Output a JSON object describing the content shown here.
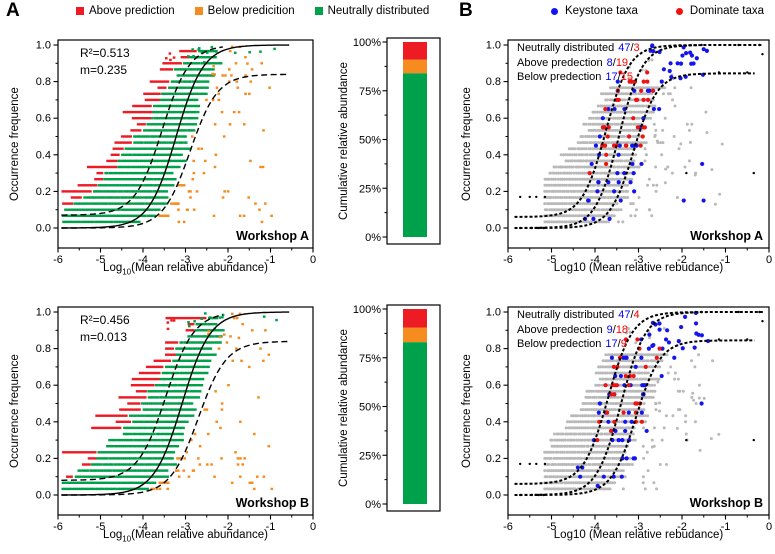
{
  "figure": {
    "panel_labels": {
      "a": "A",
      "b": "B"
    },
    "count_sep": "/",
    "background": "#ffffff",
    "legend_a": [
      {
        "label": "Above prediction",
        "color": "#ed1c24"
      },
      {
        "label": "Below predicition",
        "color": "#f68b1f"
      },
      {
        "label": "Neutrally distributed",
        "color": "#00a14b"
      }
    ],
    "legend_b": [
      {
        "label": "Keystone taxa",
        "color": "#1414ee"
      },
      {
        "label": "Dominate taxa",
        "color": "#f01111"
      }
    ],
    "annotation_number_colors": {
      "keystone": "#0000ff",
      "dominate": "#ff0000"
    },
    "point_colors": {
      "background_taxa": "#b9b9b9",
      "black": "#000000"
    }
  },
  "chart_data": [
    {
      "id": "a1",
      "type": "scatter",
      "panel": "A",
      "title": "Workshop A",
      "xlabel": {
        "pre": "Log",
        "sub": "10",
        "post": "(Mean relative abundance)"
      },
      "ylabel": "Occurrence frequence",
      "xlim": [
        -6,
        0
      ],
      "ylim": [
        0,
        1
      ],
      "xticks": [
        -6,
        -5,
        -4,
        -3,
        -2,
        -1,
        0
      ],
      "yticks": [
        "0.0",
        "0.2",
        "0.4",
        "0.6",
        "0.8",
        "1.0"
      ],
      "stats": {
        "r2": "R²=0.513",
        "m": "m=0.235"
      },
      "model": {
        "x0": -3.22,
        "s": 0.32,
        "upper_dx": 0.33,
        "upper_dy": 0.07,
        "lower_dx": 0.33,
        "lower_plateau": 0.84
      },
      "series": [
        {
          "name": "Above prediction",
          "color": "#ed1c24"
        },
        {
          "name": "Below predicition",
          "color": "#f68b1f"
        },
        {
          "name": "Neutrally distributed",
          "color": "#00a14b"
        }
      ],
      "seed": 7
    },
    {
      "id": "bar1",
      "type": "bar",
      "panel": "A",
      "ylabel": "Cumulative relative abundance",
      "yticks": [
        "0%",
        "25%",
        "50%",
        "75%",
        "100%"
      ],
      "segments": [
        {
          "name": "Neutrally distributed",
          "color": "#00a14b",
          "value": 84
        },
        {
          "name": "Below predicition",
          "color": "#f68b1f",
          "value": 7
        },
        {
          "name": "Above prediction",
          "color": "#ed1c24",
          "value": 9
        }
      ]
    },
    {
      "id": "a2",
      "type": "scatter",
      "panel": "A",
      "title": "Workshop B",
      "xlabel": {
        "pre": "Log",
        "sub": "10",
        "post": "(Mean relative abundance)"
      },
      "ylabel": "Occurrence frequence",
      "xlim": [
        -6,
        0
      ],
      "ylim": [
        0,
        1
      ],
      "xticks": [
        -6,
        -5,
        -4,
        -3,
        -2,
        -1,
        0
      ],
      "yticks": [
        "0.0",
        "0.2",
        "0.4",
        "0.6",
        "0.8",
        "1.0"
      ],
      "stats": {
        "r2": "R²=0.456",
        "m": "m=0.013"
      },
      "model": {
        "x0": -3.08,
        "s": 0.33,
        "upper_dx": 0.38,
        "upper_dy": 0.08,
        "lower_dx": 0.38,
        "lower_plateau": 0.84
      },
      "series": [
        {
          "name": "Above prediction",
          "color": "#ed1c24"
        },
        {
          "name": "Below predicition",
          "color": "#f68b1f"
        },
        {
          "name": "Neutrally distributed",
          "color": "#00a14b"
        }
      ],
      "seed": 13
    },
    {
      "id": "bar2",
      "type": "bar",
      "panel": "A",
      "ylabel": "Cumulative relative abundance",
      "yticks": [
        "0%",
        "25%",
        "50%",
        "75%",
        "100%"
      ],
      "segments": [
        {
          "name": "Neutrally distributed",
          "color": "#00a14b",
          "value": 83
        },
        {
          "name": "Below predicition",
          "color": "#f68b1f",
          "value": 7.5
        },
        {
          "name": "Above prediction",
          "color": "#ed1c24",
          "value": 9.5
        }
      ]
    },
    {
      "id": "b1",
      "type": "scatter",
      "variant": "taxa",
      "panel": "B",
      "title": "Workshop A",
      "xlabel_plain": "Log10 (Mean relative rebudance)",
      "ylabel": "Occurrence frequence",
      "xlim": [
        -6,
        0
      ],
      "ylim": [
        0,
        1
      ],
      "xticks": [
        -6,
        -5,
        -4,
        -3,
        -2,
        -1,
        0
      ],
      "yticks": [
        "0.0",
        "0.2",
        "0.4",
        "0.6",
        "0.8",
        "1.0"
      ],
      "counts": [
        {
          "label": "Neutrally distributed",
          "keystone": "47",
          "dominate": "3"
        },
        {
          "label": "Above predection",
          "keystone": "8",
          "dominate": "19"
        },
        {
          "label": "Below predection",
          "keystone": "17",
          "dominate": "15"
        }
      ],
      "model": {
        "x0": -3.45,
        "s": 0.27,
        "upper_dx": 0.3,
        "upper_dy": 0.06,
        "lower_dx": 0.34,
        "lower_plateau": 0.845
      },
      "series": [
        {
          "name": "Keystone taxa",
          "color": "#1414ee"
        },
        {
          "name": "Dominate taxa",
          "color": "#f01111"
        }
      ],
      "seed": 101
    },
    {
      "id": "b2",
      "type": "scatter",
      "variant": "taxa",
      "panel": "B",
      "title": "Workshop B",
      "xlabel_plain": "Log10 (Mean relative rebudance)",
      "ylabel": "Occurrence frequence",
      "xlim": [
        -6,
        0
      ],
      "ylim": [
        0,
        1
      ],
      "xticks": [
        -6,
        -5,
        -4,
        -3,
        -2,
        -1,
        0
      ],
      "yticks": [
        "0.0",
        "0.2",
        "0.4",
        "0.6",
        "0.8",
        "1.0"
      ],
      "counts": [
        {
          "label": "Neutrally distributed",
          "keystone": "47",
          "dominate": "4"
        },
        {
          "label": "Above predection",
          "keystone": "9",
          "dominate": "18"
        },
        {
          "label": "Below predection",
          "keystone": "17",
          "dominate": "9"
        }
      ],
      "model": {
        "x0": -3.4,
        "s": 0.28,
        "upper_dx": 0.3,
        "upper_dy": 0.06,
        "lower_dx": 0.34,
        "lower_plateau": 0.845
      },
      "series": [
        {
          "name": "Keystone taxa",
          "color": "#1414ee"
        },
        {
          "name": "Dominate taxa",
          "color": "#f01111"
        }
      ],
      "seed": 202
    }
  ]
}
